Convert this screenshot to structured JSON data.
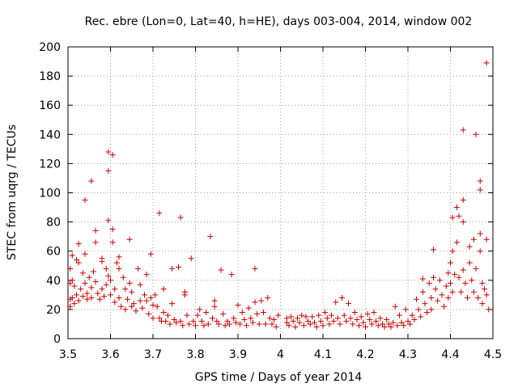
{
  "chart_data": {
    "type": "scatter",
    "title": "Rec. ebre (Lon=0, Lat=40, h=HE), days 003-004, 2014, window 002",
    "xlabel": "GPS time / Days of year 2014",
    "ylabel": "STEC from uqrg / TECUs",
    "xlim": [
      3.5,
      4.5
    ],
    "ylim": [
      0,
      200
    ],
    "xticks": [
      3.5,
      3.6,
      3.7,
      3.8,
      3.9,
      4.0,
      4.1,
      4.2,
      4.3,
      4.4,
      4.5
    ],
    "xtick_labels": [
      "3.5",
      "3.6",
      "3.7",
      "3.8",
      "3.9",
      "4",
      "4.1",
      "4.2",
      "4.3",
      "4.4",
      "4.5"
    ],
    "yticks": [
      0,
      20,
      40,
      60,
      80,
      100,
      120,
      140,
      160,
      180,
      200
    ],
    "ytick_labels": [
      "0",
      "20",
      "40",
      "60",
      "80",
      "100",
      "120",
      "140",
      "160",
      "180",
      "200"
    ],
    "grid": true,
    "marker": "+",
    "series": [
      {
        "name": "STEC",
        "color": "#cc0000",
        "points": [
          [
            3.505,
            48
          ],
          [
            3.505,
            38
          ],
          [
            3.505,
            27
          ],
          [
            3.505,
            22
          ],
          [
            3.51,
            57
          ],
          [
            3.51,
            40
          ],
          [
            3.51,
            28
          ],
          [
            3.515,
            24
          ],
          [
            3.515,
            36
          ],
          [
            3.52,
            54
          ],
          [
            3.52,
            30
          ],
          [
            3.525,
            65
          ],
          [
            3.525,
            52
          ],
          [
            3.525,
            26
          ],
          [
            3.53,
            34
          ],
          [
            3.535,
            45
          ],
          [
            3.535,
            29
          ],
          [
            3.54,
            95
          ],
          [
            3.54,
            58
          ],
          [
            3.54,
            38
          ],
          [
            3.545,
            31
          ],
          [
            3.545,
            27
          ],
          [
            3.55,
            42
          ],
          [
            3.555,
            108
          ],
          [
            3.555,
            35
          ],
          [
            3.555,
            28
          ],
          [
            3.56,
            46
          ],
          [
            3.565,
            74
          ],
          [
            3.565,
            66
          ],
          [
            3.565,
            39
          ],
          [
            3.57,
            31
          ],
          [
            3.575,
            27
          ],
          [
            3.58,
            55
          ],
          [
            3.58,
            53
          ],
          [
            3.58,
            34
          ],
          [
            3.585,
            29
          ],
          [
            3.59,
            48
          ],
          [
            3.59,
            37
          ],
          [
            3.595,
            128
          ],
          [
            3.595,
            115
          ],
          [
            3.595,
            81
          ],
          [
            3.595,
            43
          ],
          [
            3.6,
            40
          ],
          [
            3.6,
            30
          ],
          [
            3.605,
            126
          ],
          [
            3.605,
            75
          ],
          [
            3.605,
            66
          ],
          [
            3.61,
            34
          ],
          [
            3.61,
            25
          ],
          [
            3.615,
            52
          ],
          [
            3.62,
            56
          ],
          [
            3.62,
            48
          ],
          [
            3.62,
            28
          ],
          [
            3.625,
            22
          ],
          [
            3.63,
            42
          ],
          [
            3.635,
            34
          ],
          [
            3.635,
            20
          ],
          [
            3.64,
            27
          ],
          [
            3.645,
            68
          ],
          [
            3.645,
            38
          ],
          [
            3.65,
            32
          ],
          [
            3.65,
            22
          ],
          [
            3.655,
            24
          ],
          [
            3.66,
            19
          ],
          [
            3.665,
            48
          ],
          [
            3.67,
            37
          ],
          [
            3.67,
            26
          ],
          [
            3.675,
            21
          ],
          [
            3.68,
            30
          ],
          [
            3.685,
            44
          ],
          [
            3.685,
            26
          ],
          [
            3.69,
            17
          ],
          [
            3.695,
            58
          ],
          [
            3.695,
            28
          ],
          [
            3.7,
            23
          ],
          [
            3.7,
            14
          ],
          [
            3.705,
            30
          ],
          [
            3.71,
            22
          ],
          [
            3.715,
            86
          ],
          [
            3.715,
            14
          ],
          [
            3.72,
            12
          ],
          [
            3.725,
            34
          ],
          [
            3.725,
            18
          ],
          [
            3.73,
            12
          ],
          [
            3.735,
            16
          ],
          [
            3.74,
            10
          ],
          [
            3.745,
            48
          ],
          [
            3.745,
            24
          ],
          [
            3.75,
            13
          ],
          [
            3.755,
            11
          ],
          [
            3.76,
            49
          ],
          [
            3.765,
            83
          ],
          [
            3.765,
            12
          ],
          [
            3.77,
            9
          ],
          [
            3.775,
            32
          ],
          [
            3.775,
            30
          ],
          [
            3.78,
            16
          ],
          [
            3.785,
            10
          ],
          [
            3.79,
            55
          ],
          [
            3.795,
            12
          ],
          [
            3.8,
            9
          ],
          [
            3.805,
            16
          ],
          [
            3.81,
            20
          ],
          [
            3.815,
            12
          ],
          [
            3.82,
            9
          ],
          [
            3.825,
            18
          ],
          [
            3.83,
            10
          ],
          [
            3.835,
            70
          ],
          [
            3.84,
            14
          ],
          [
            3.845,
            26
          ],
          [
            3.845,
            22
          ],
          [
            3.85,
            12
          ],
          [
            3.855,
            10
          ],
          [
            3.86,
            47
          ],
          [
            3.865,
            17
          ],
          [
            3.87,
            9
          ],
          [
            3.875,
            12
          ],
          [
            3.88,
            10
          ],
          [
            3.885,
            44
          ],
          [
            3.89,
            14
          ],
          [
            3.895,
            11
          ],
          [
            3.9,
            23
          ],
          [
            3.905,
            10
          ],
          [
            3.91,
            18
          ],
          [
            3.915,
            13
          ],
          [
            3.92,
            9
          ],
          [
            3.925,
            21
          ],
          [
            3.93,
            14
          ],
          [
            3.935,
            11
          ],
          [
            3.94,
            48
          ],
          [
            3.94,
            25
          ],
          [
            3.945,
            17
          ],
          [
            3.95,
            10
          ],
          [
            3.955,
            26
          ],
          [
            3.96,
            18
          ],
          [
            3.965,
            10
          ],
          [
            3.97,
            28
          ],
          [
            3.975,
            14
          ],
          [
            3.98,
            10
          ],
          [
            3.985,
            13
          ],
          [
            3.99,
            8
          ],
          [
            3.995,
            16
          ],
          [
            4.015,
            14
          ],
          [
            4.015,
            11
          ],
          [
            4.02,
            9
          ],
          [
            4.025,
            15
          ],
          [
            4.03,
            12
          ],
          [
            4.035,
            8
          ],
          [
            4.04,
            14
          ],
          [
            4.045,
            11
          ],
          [
            4.05,
            16
          ],
          [
            4.055,
            9
          ],
          [
            4.06,
            15
          ],
          [
            4.065,
            12
          ],
          [
            4.07,
            10
          ],
          [
            4.075,
            15
          ],
          [
            4.08,
            11
          ],
          [
            4.085,
            8
          ],
          [
            4.09,
            16
          ],
          [
            4.095,
            12
          ],
          [
            4.1,
            9
          ],
          [
            4.105,
            18
          ],
          [
            4.11,
            14
          ],
          [
            4.115,
            10
          ],
          [
            4.12,
            16
          ],
          [
            4.125,
            12
          ],
          [
            4.13,
            25
          ],
          [
            4.135,
            14
          ],
          [
            4.14,
            10
          ],
          [
            4.145,
            28
          ],
          [
            4.15,
            16
          ],
          [
            4.155,
            12
          ],
          [
            4.16,
            24
          ],
          [
            4.165,
            14
          ],
          [
            4.17,
            10
          ],
          [
            4.175,
            18
          ],
          [
            4.18,
            13
          ],
          [
            4.185,
            9
          ],
          [
            4.19,
            15
          ],
          [
            4.195,
            11
          ],
          [
            4.2,
            8
          ],
          [
            4.205,
            17
          ],
          [
            4.21,
            13
          ],
          [
            4.215,
            10
          ],
          [
            4.22,
            18
          ],
          [
            4.225,
            12
          ],
          [
            4.23,
            9
          ],
          [
            4.235,
            14
          ],
          [
            4.24,
            10
          ],
          [
            4.245,
            8
          ],
          [
            4.25,
            13
          ],
          [
            4.255,
            10
          ],
          [
            4.26,
            8
          ],
          [
            4.265,
            11
          ],
          [
            4.27,
            22
          ],
          [
            4.275,
            9
          ],
          [
            4.28,
            16
          ],
          [
            4.285,
            11
          ],
          [
            4.29,
            9
          ],
          [
            4.295,
            20
          ],
          [
            4.3,
            12
          ],
          [
            4.305,
            10
          ],
          [
            4.31,
            16
          ],
          [
            4.315,
            13
          ],
          [
            4.32,
            27
          ],
          [
            4.325,
            20
          ],
          [
            4.33,
            15
          ],
          [
            4.335,
            41
          ],
          [
            4.335,
            32
          ],
          [
            4.34,
            24
          ],
          [
            4.345,
            18
          ],
          [
            4.35,
            38
          ],
          [
            4.355,
            28
          ],
          [
            4.355,
            20
          ],
          [
            4.36,
            61
          ],
          [
            4.36,
            42
          ],
          [
            4.365,
            34
          ],
          [
            4.37,
            26
          ],
          [
            4.375,
            40
          ],
          [
            4.38,
            30
          ],
          [
            4.385,
            22
          ],
          [
            4.39,
            36
          ],
          [
            4.395,
            45
          ],
          [
            4.395,
            28
          ],
          [
            4.4,
            52
          ],
          [
            4.4,
            38
          ],
          [
            4.405,
            83
          ],
          [
            4.405,
            60
          ],
          [
            4.405,
            32
          ],
          [
            4.41,
            44
          ],
          [
            4.415,
            90
          ],
          [
            4.415,
            66
          ],
          [
            4.42,
            84
          ],
          [
            4.42,
            42
          ],
          [
            4.425,
            32
          ],
          [
            4.43,
            143
          ],
          [
            4.43,
            95
          ],
          [
            4.43,
            80
          ],
          [
            4.43,
            47
          ],
          [
            4.435,
            38
          ],
          [
            4.44,
            28
          ],
          [
            4.445,
            63
          ],
          [
            4.445,
            52
          ],
          [
            4.45,
            40
          ],
          [
            4.455,
            68
          ],
          [
            4.455,
            32
          ],
          [
            4.46,
            140
          ],
          [
            4.46,
            48
          ],
          [
            4.465,
            28
          ],
          [
            4.47,
            108
          ],
          [
            4.47,
            102
          ],
          [
            4.47,
            72
          ],
          [
            4.47,
            60
          ],
          [
            4.475,
            38
          ],
          [
            4.475,
            24
          ],
          [
            4.48,
            34
          ],
          [
            4.485,
            189
          ],
          [
            4.485,
            68
          ],
          [
            4.485,
            30
          ],
          [
            4.49,
            20
          ]
        ]
      }
    ]
  }
}
